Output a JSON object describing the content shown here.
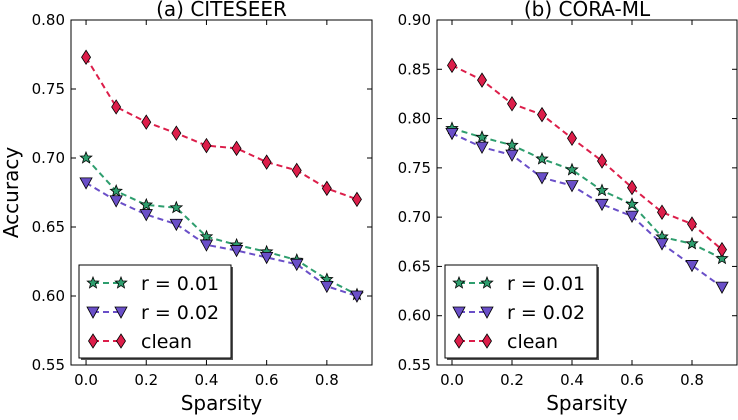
{
  "chart_data": [
    {
      "type": "line",
      "title": "(a) CITESEER",
      "xlabel": "Sparsity",
      "ylabel": "Accuracy",
      "xlim": [
        -0.05,
        0.95
      ],
      "ylim": [
        0.55,
        0.8
      ],
      "xticks": [
        "0.0",
        "0.2",
        "0.4",
        "0.6",
        "0.8"
      ],
      "yticks": [
        "0.55",
        "0.60",
        "0.65",
        "0.70",
        "0.75",
        "0.80"
      ],
      "legend": "lower-left",
      "grid": false,
      "x": [
        0.0,
        0.1,
        0.2,
        0.3,
        0.4,
        0.5,
        0.6,
        0.7,
        0.8,
        0.9
      ],
      "series": [
        {
          "name": "r = 0.01",
          "marker": "star",
          "color": "#2e9e6e",
          "values": [
            0.7,
            0.676,
            0.666,
            0.664,
            0.643,
            0.637,
            0.632,
            0.626,
            0.612,
            0.601
          ]
        },
        {
          "name": "r = 0.02",
          "marker": "triangle-down",
          "color": "#6a4fc8",
          "values": [
            0.682,
            0.669,
            0.659,
            0.652,
            0.637,
            0.633,
            0.628,
            0.623,
            0.607,
            0.6
          ]
        },
        {
          "name": "clean",
          "marker": "diamond",
          "color": "#dc1e4a",
          "values": [
            0.773,
            0.737,
            0.726,
            0.718,
            0.709,
            0.707,
            0.697,
            0.691,
            0.678,
            0.67
          ]
        }
      ]
    },
    {
      "type": "line",
      "title": "(b) CORA-ML",
      "xlabel": "Sparsity",
      "ylabel": "",
      "xlim": [
        -0.05,
        0.95
      ],
      "ylim": [
        0.55,
        0.9
      ],
      "xticks": [
        "0.0",
        "0.2",
        "0.4",
        "0.6",
        "0.8"
      ],
      "yticks": [
        "0.55",
        "0.60",
        "0.65",
        "0.70",
        "0.75",
        "0.80",
        "0.85",
        "0.90"
      ],
      "legend": "lower-left",
      "grid": false,
      "x": [
        0.0,
        0.1,
        0.2,
        0.3,
        0.4,
        0.5,
        0.6,
        0.7,
        0.8,
        0.9
      ],
      "series": [
        {
          "name": "r = 0.01",
          "marker": "star",
          "color": "#2e9e6e",
          "values": [
            0.79,
            0.781,
            0.773,
            0.759,
            0.748,
            0.727,
            0.713,
            0.68,
            0.673,
            0.658
          ]
        },
        {
          "name": "r = 0.02",
          "marker": "triangle-down",
          "color": "#6a4fc8",
          "values": [
            0.785,
            0.771,
            0.763,
            0.74,
            0.732,
            0.713,
            0.701,
            0.673,
            0.651,
            0.629
          ]
        },
        {
          "name": "clean",
          "marker": "diamond",
          "color": "#dc1e4a",
          "values": [
            0.854,
            0.839,
            0.815,
            0.804,
            0.78,
            0.757,
            0.73,
            0.705,
            0.693,
            0.667
          ]
        }
      ]
    }
  ]
}
